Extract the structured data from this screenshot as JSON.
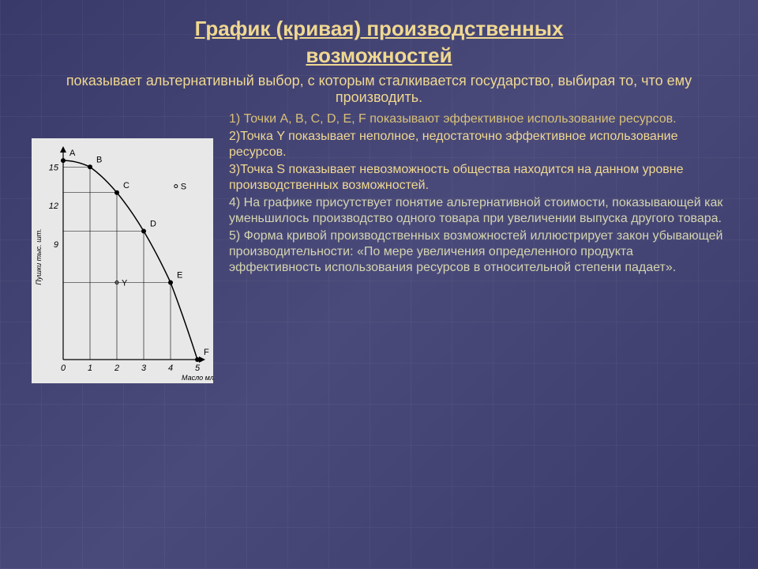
{
  "title_line1": "График (кривая) производственных",
  "title_line2": "возможностей",
  "subtitle": "показывает альтернативный выбор, с которым сталкивается государство, выбирая то, что ему производить.",
  "points_text": {
    "p1": "1) Точки A, B, C, D, E, F показывают эффективное использование ресурсов.",
    "p2": "2)Точка Y показывает неполное, недостаточно эффективное использование ресурсов.",
    "p3": "3)Точка S показывает невозможность общества находится на данном уровне производственных возможностей.",
    "p4": "4) На графике присутствует понятие альтернативной стоимости, показывающей как уменьшилось производство одного товара при увеличении  выпуска другого товара.",
    "p5": "5) Форма кривой производственных возможностей иллюстрирует закон убывающей производительности: «По мере увеличения определенного продукта эффективность использования ресурсов в относительной степени падает»."
  },
  "chart": {
    "type": "line",
    "background_color": "#e8e8e8",
    "curve_color": "#000000",
    "grid_color": "#000000",
    "text_color": "#000000",
    "y_label": "Пушки тыс. шт.",
    "x_label": "Масло млн. т.",
    "x_ticks": [
      0,
      1,
      2,
      3,
      4,
      5
    ],
    "y_ticks": [
      3,
      6,
      9,
      12,
      15
    ],
    "y_tick_labels": [
      "",
      "",
      "9",
      "12",
      "15"
    ],
    "curve_points": [
      {
        "label": "A",
        "x": 0,
        "y": 15.5
      },
      {
        "label": "B",
        "x": 1,
        "y": 15
      },
      {
        "label": "C",
        "x": 2,
        "y": 13
      },
      {
        "label": "D",
        "x": 3,
        "y": 10
      },
      {
        "label": "E",
        "x": 4,
        "y": 6
      },
      {
        "label": "F",
        "x": 5,
        "y": 0
      }
    ],
    "extra_points": [
      {
        "label": "Y",
        "x": 2,
        "y": 6
      },
      {
        "label": "S",
        "x": 4.2,
        "y": 13.5
      }
    ],
    "line_width": 1.5,
    "marker_size": 3,
    "label_fontsize": 11
  },
  "colors": {
    "page_bg": "#44447a",
    "text_primary": "#f0d890",
    "text_alt1": "#d8c078",
    "text_alt2": "#d4d4b0"
  }
}
